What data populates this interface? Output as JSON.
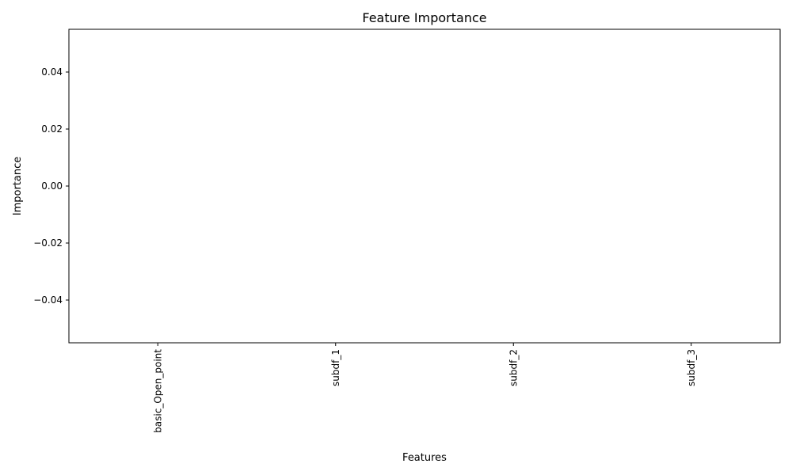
{
  "chart_data": {
    "type": "bar",
    "title": "Feature Importance",
    "xlabel": "Features",
    "ylabel": "Importance",
    "categories": [
      "basic_Open_point",
      "subdf_1",
      "subdf_2",
      "subdf_3"
    ],
    "values": [
      0,
      0,
      0,
      0
    ],
    "ylim": [
      -0.055,
      0.055
    ],
    "yticks": [
      -0.04,
      -0.02,
      0.0,
      0.02,
      0.04
    ],
    "ytick_labels": [
      "−0.04",
      "−0.02",
      "0.00",
      "0.02",
      "0.04"
    ],
    "grid": false,
    "legend": "none",
    "colors": {
      "axis": "#000000",
      "background": "#ffffff",
      "bar": "#1f77b4"
    }
  }
}
